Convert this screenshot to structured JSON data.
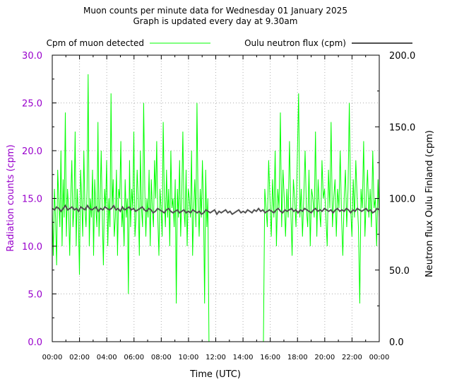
{
  "chart_data": {
    "type": "line",
    "title": "Muon counts per minute data for Wednesday 01 January 2025",
    "subtitle": "Graph is updated every day at 9.30am",
    "xlabel": "Time (UTC)",
    "ylabel": "Radiation counts (cpm)",
    "y2label": "Neutron flux Oulu Finland (cpm)",
    "x_ticks": [
      "00:00",
      "02:00",
      "04:00",
      "06:00",
      "08:00",
      "10:00",
      "12:00",
      "14:00",
      "16:00",
      "18:00",
      "20:00",
      "22:00",
      "00:00"
    ],
    "xlim_hours": [
      0,
      24
    ],
    "ylim": [
      0,
      30
    ],
    "y_ticks": [
      "0.0",
      "5.0",
      "10.0",
      "15.0",
      "20.0",
      "25.0",
      "30.0"
    ],
    "y2lim": [
      0,
      200
    ],
    "y2_ticks": [
      "0.0",
      "50.0",
      "100.0",
      "150.0",
      "200.0"
    ],
    "grid": true,
    "legend_position": "top",
    "series": [
      {
        "name": "Cpm of muon detected",
        "axis": "left",
        "color": "#00ff00",
        "segments": [
          {
            "start_hour": 0.0,
            "end_hour": 11.5,
            "values": [
              14,
              9,
              16,
              13,
              8,
              18,
              15,
              12,
              20,
              10,
              17,
              13,
              24,
              11,
              16,
              14,
              9,
              15,
              19,
              12,
              14,
              22,
              10,
              16,
              13,
              7,
              18,
              15,
              11,
              20,
              14,
              12,
              16,
              28,
              10,
              15,
              13,
              18,
              9,
              17,
              14,
              12,
              23,
              11,
              15,
              20,
              13,
              8,
              16,
              14,
              19,
              10,
              15,
              12,
              26,
              14,
              17,
              11,
              13,
              18,
              9,
              16,
              15,
              21,
              12,
              14,
              10,
              17,
              13,
              15,
              5,
              19,
              12,
              16,
              14,
              22,
              11,
              13,
              18,
              15,
              9,
              20,
              14,
              12,
              25,
              16,
              11,
              15,
              13,
              18,
              10,
              17,
              14,
              12,
              19,
              15,
              21,
              13,
              9,
              16,
              14,
              11,
              23,
              15,
              12,
              18,
              13,
              16,
              10,
              20,
              14,
              15,
              12,
              17,
              4,
              16,
              13,
              19,
              11,
              15,
              22,
              14,
              12,
              18,
              10,
              16,
              15,
              13,
              20,
              9,
              14,
              17,
              12,
              25,
              15,
              11,
              16,
              13,
              19,
              14,
              4,
              18,
              12,
              15,
              0
            ]
          },
          {
            "start_hour": 15.5,
            "end_hour": 24.0,
            "values": [
              0,
              16,
              14,
              12,
              19,
              15,
              11,
              17,
              13,
              20,
              10,
              16,
              14,
              24,
              12,
              18,
              15,
              11,
              16,
              13,
              21,
              14,
              9,
              17,
              15,
              12,
              19,
              26,
              13,
              16,
              11,
              15,
              20,
              14,
              12,
              18,
              10,
              16,
              15,
              13,
              22,
              11,
              17,
              14,
              12,
              19,
              15,
              16,
              13,
              10,
              18,
              14,
              23,
              12,
              15,
              17,
              11,
              16,
              14,
              20,
              13,
              9,
              15,
              18,
              12,
              16,
              25,
              14,
              11,
              17,
              13,
              19,
              15,
              12,
              4,
              16,
              14,
              21,
              11,
              15,
              18,
              13,
              16,
              12,
              20,
              14,
              15,
              10,
              17,
              13
            ]
          }
        ]
      },
      {
        "name": "Oulu neutron flux (cpm)",
        "axis": "right",
        "color": "#505050",
        "x_start_hour": 0,
        "x_end_hour": 24,
        "values": [
          93,
          92,
          94,
          93,
          91,
          93,
          95,
          92,
          93,
          94,
          92,
          93,
          91,
          94,
          93,
          92,
          95,
          93,
          92,
          93,
          94,
          91,
          93,
          92,
          94,
          93,
          92,
          93,
          95,
          92,
          93,
          91,
          94,
          92,
          93,
          94,
          92,
          93,
          91,
          92,
          93,
          94,
          92,
          91,
          93,
          92,
          90,
          91,
          93,
          92,
          91,
          90,
          92,
          93,
          91,
          90,
          91,
          92,
          90,
          91,
          92,
          90,
          91,
          90,
          92,
          91,
          90,
          91,
          89,
          90,
          92,
          91,
          90,
          91,
          92,
          89,
          91,
          90,
          91,
          92,
          90,
          91,
          89,
          90,
          91,
          92,
          90,
          91,
          90,
          92,
          91,
          90,
          92,
          91,
          93,
          91,
          92,
          90,
          91,
          92,
          91,
          90,
          92,
          93,
          91,
          90,
          92,
          91,
          92,
          93,
          91,
          92,
          90,
          92,
          91,
          93,
          92,
          91,
          90,
          92,
          93,
          91,
          92,
          91,
          93,
          92,
          91,
          92,
          90,
          92,
          93,
          91,
          92,
          91,
          93,
          92,
          90,
          92,
          91,
          93,
          92,
          91,
          92,
          93,
          91,
          92,
          90,
          91,
          93,
          92
        ]
      }
    ]
  }
}
